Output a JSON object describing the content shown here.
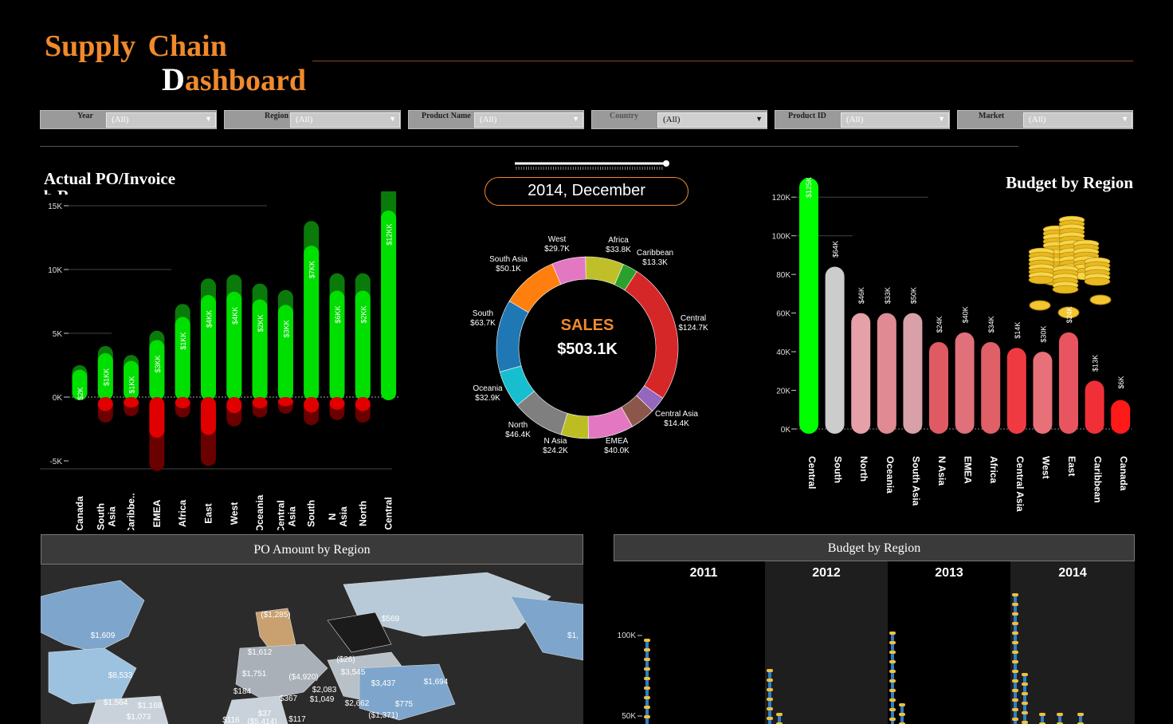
{
  "header": {
    "title_line1": "Supply  Chain",
    "title_line2_first": "D",
    "title_line2_rest": "ashboard"
  },
  "filters": [
    {
      "label": "Year",
      "value": "(All)"
    },
    {
      "label": "Region",
      "value": "(All)"
    },
    {
      "label": "Product Name",
      "value": "(All)"
    },
    {
      "label": "Country",
      "value": "(All)"
    },
    {
      "label": "Product ID",
      "value": "(All)"
    },
    {
      "label": "Market",
      "value": "(All)"
    }
  ],
  "po_invoice": {
    "title": "Actual  PO/Invoice",
    "title_clipped": "b  R",
    "chart_data": {
      "type": "bar",
      "ylim": [
        -5500,
        15500
      ],
      "ticks": [
        "15K",
        "10K",
        "5K",
        "0K",
        "-5K"
      ],
      "categories": [
        "Canada",
        "South Asia",
        "Caribbe..",
        "EMEA",
        "Africa",
        "East",
        "West",
        "Oceania",
        "Central Asia",
        "South",
        "N Asia",
        "North",
        "Central"
      ],
      "positive": [
        2500,
        4000,
        3300,
        5200,
        7300,
        9300,
        9600,
        8900,
        8400,
        13800,
        9700,
        9700,
        17000
      ],
      "negative": [
        0,
        -2000,
        -1500,
        -5800,
        -1600,
        -5400,
        -2300,
        -1600,
        -1300,
        -2200,
        -1800,
        -2000,
        0
      ],
      "labels": [
        "$2K",
        "$1KK",
        "$1KK",
        "$3KK",
        "$1KK",
        "$4KK",
        "$4KK",
        "$2KK",
        "$3KK",
        "$7KK",
        "$6KK",
        "$2KK",
        "$12KK"
      ]
    }
  },
  "center": {
    "date_label": "2014, December",
    "donut": {
      "center_title": "SALES",
      "center_value": "$503.1K",
      "chart_data": {
        "type": "pie",
        "slices": [
          {
            "name": "Africa",
            "label": "$33.8K",
            "value": 33.8,
            "color": "#bfbf2a"
          },
          {
            "name": "Caribbean",
            "label": "$13.3K",
            "value": 13.3,
            "color": "#2ca02c"
          },
          {
            "name": "Central",
            "label": "$124.7K",
            "value": 124.7,
            "color": "#d62728"
          },
          {
            "name": "Central Asia",
            "label": "$14.4K",
            "value": 14.4,
            "color": "#9467bd"
          },
          {
            "name": "",
            "label": "",
            "value": 22.0,
            "color": "#8c564b"
          },
          {
            "name": "EMEA",
            "label": "$40.0K",
            "value": 40.0,
            "color": "#e377c2"
          },
          {
            "name": "N Asia",
            "label": "$24.2K",
            "value": 24.2,
            "color": "#bcbd22"
          },
          {
            "name": "North",
            "label": "$46.4K",
            "value": 46.4,
            "color": "#7f7f7f"
          },
          {
            "name": "Oceania",
            "label": "$32.9K",
            "value": 32.9,
            "color": "#17becf"
          },
          {
            "name": "South",
            "label": "$63.7K",
            "value": 63.7,
            "color": "#1f77b4"
          },
          {
            "name": "South Asia",
            "label": "$50.1K",
            "value": 50.1,
            "color": "#ff7f0e"
          },
          {
            "name": "West",
            "label": "$29.7K",
            "value": 29.7,
            "color": "#e377c2"
          }
        ]
      }
    }
  },
  "budget_region": {
    "title": "Budget  by  Region",
    "chart_data": {
      "type": "bar",
      "ylim": [
        0,
        130000
      ],
      "ticks": [
        "120K",
        "100K",
        "80K",
        "60K",
        "40K",
        "20K",
        "0K"
      ],
      "categories": [
        "Central",
        "South",
        "North",
        "Oceania",
        "South Asia",
        "N Asia",
        "EMEA",
        "Africa",
        "Central Asia",
        "West",
        "East",
        "Caribbean",
        "Canada"
      ],
      "values": [
        130000,
        84000,
        60000,
        60000,
        60000,
        45000,
        50000,
        45000,
        42000,
        40000,
        50000,
        25000,
        15000
      ],
      "labels": [
        "$125K",
        "$64K",
        "$46K",
        "$33K",
        "$50K",
        "$24K",
        "$40K",
        "$34K",
        "$14K",
        "$30K",
        "$24K",
        "$13K",
        "$6K"
      ],
      "colors": [
        "#00ff00",
        "#cccccc",
        "#e6a0a8",
        "#e08a94",
        "#d8a0a8",
        "#e05a64",
        "#e0707a",
        "#e06068",
        "#f03a42",
        "#e87078",
        "#e85560",
        "#f03036",
        "#ff1a1a"
      ]
    }
  },
  "po_map": {
    "title": "PO Amount by Region",
    "labels": [
      "$1,609",
      "$8,533",
      "$1,564",
      "$1,168",
      "$1,073",
      "($1,285)",
      "$569",
      "$1,612",
      "($26)",
      "$1,751",
      "($4,920)",
      "$3,545",
      "$3,437",
      "$1,694",
      "$184",
      "$2,083",
      "$367",
      "$1,049",
      "$2,662",
      "$775",
      "$116",
      "$37",
      "$117",
      "($5,414)",
      "($1,371)",
      "$1,"
    ]
  },
  "budget_year": {
    "title": "Budget by Region",
    "years": [
      "2011",
      "2012",
      "2013",
      "2014"
    ],
    "ticks": [
      "100K",
      "50K"
    ]
  }
}
